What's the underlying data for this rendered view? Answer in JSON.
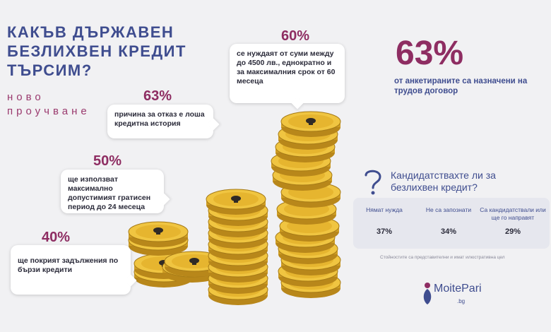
{
  "title": {
    "line1": "КАКЪВ ДЪРЖАВЕН",
    "line2": "БЕЗЛИХВЕН КРЕДИТ",
    "line3": "ТЪРСИМ?"
  },
  "subtitle": {
    "line1": "ново",
    "line2": "проучване"
  },
  "stats": [
    {
      "pct": "60%",
      "text": "се нуждаят от суми между до 4500 лв., еднократно и за максималния срок от 60 месеца"
    },
    {
      "pct": "63%",
      "text": "причина за отказ е лоша кредитна история"
    },
    {
      "pct": "50%",
      "text": "ще използват максимално допустимият гратисен период до 24 месеца"
    },
    {
      "pct": "40%",
      "text": "ще покрият задължения по бързи кредити"
    }
  ],
  "highlight": {
    "pct": "63%",
    "text": "от анкетираните са назначени на трудов договор"
  },
  "survey": {
    "question": "Кандидатствахте ли за безлихвен кредит?",
    "columns": [
      {
        "label": "Нямат нужда",
        "value": "37%"
      },
      {
        "label": "Не са запознати",
        "value": "34%"
      },
      {
        "label": "Са кандидатствали или ще го направят",
        "value": "29%"
      }
    ],
    "note": "Стойностите са представителни и имат илюстративна цел"
  },
  "logo": {
    "name": "MoitePari",
    "suffix": ".bg"
  },
  "colors": {
    "primary": "#3f4d8f",
    "accent": "#8e2d62",
    "coin": "#e2b531"
  }
}
